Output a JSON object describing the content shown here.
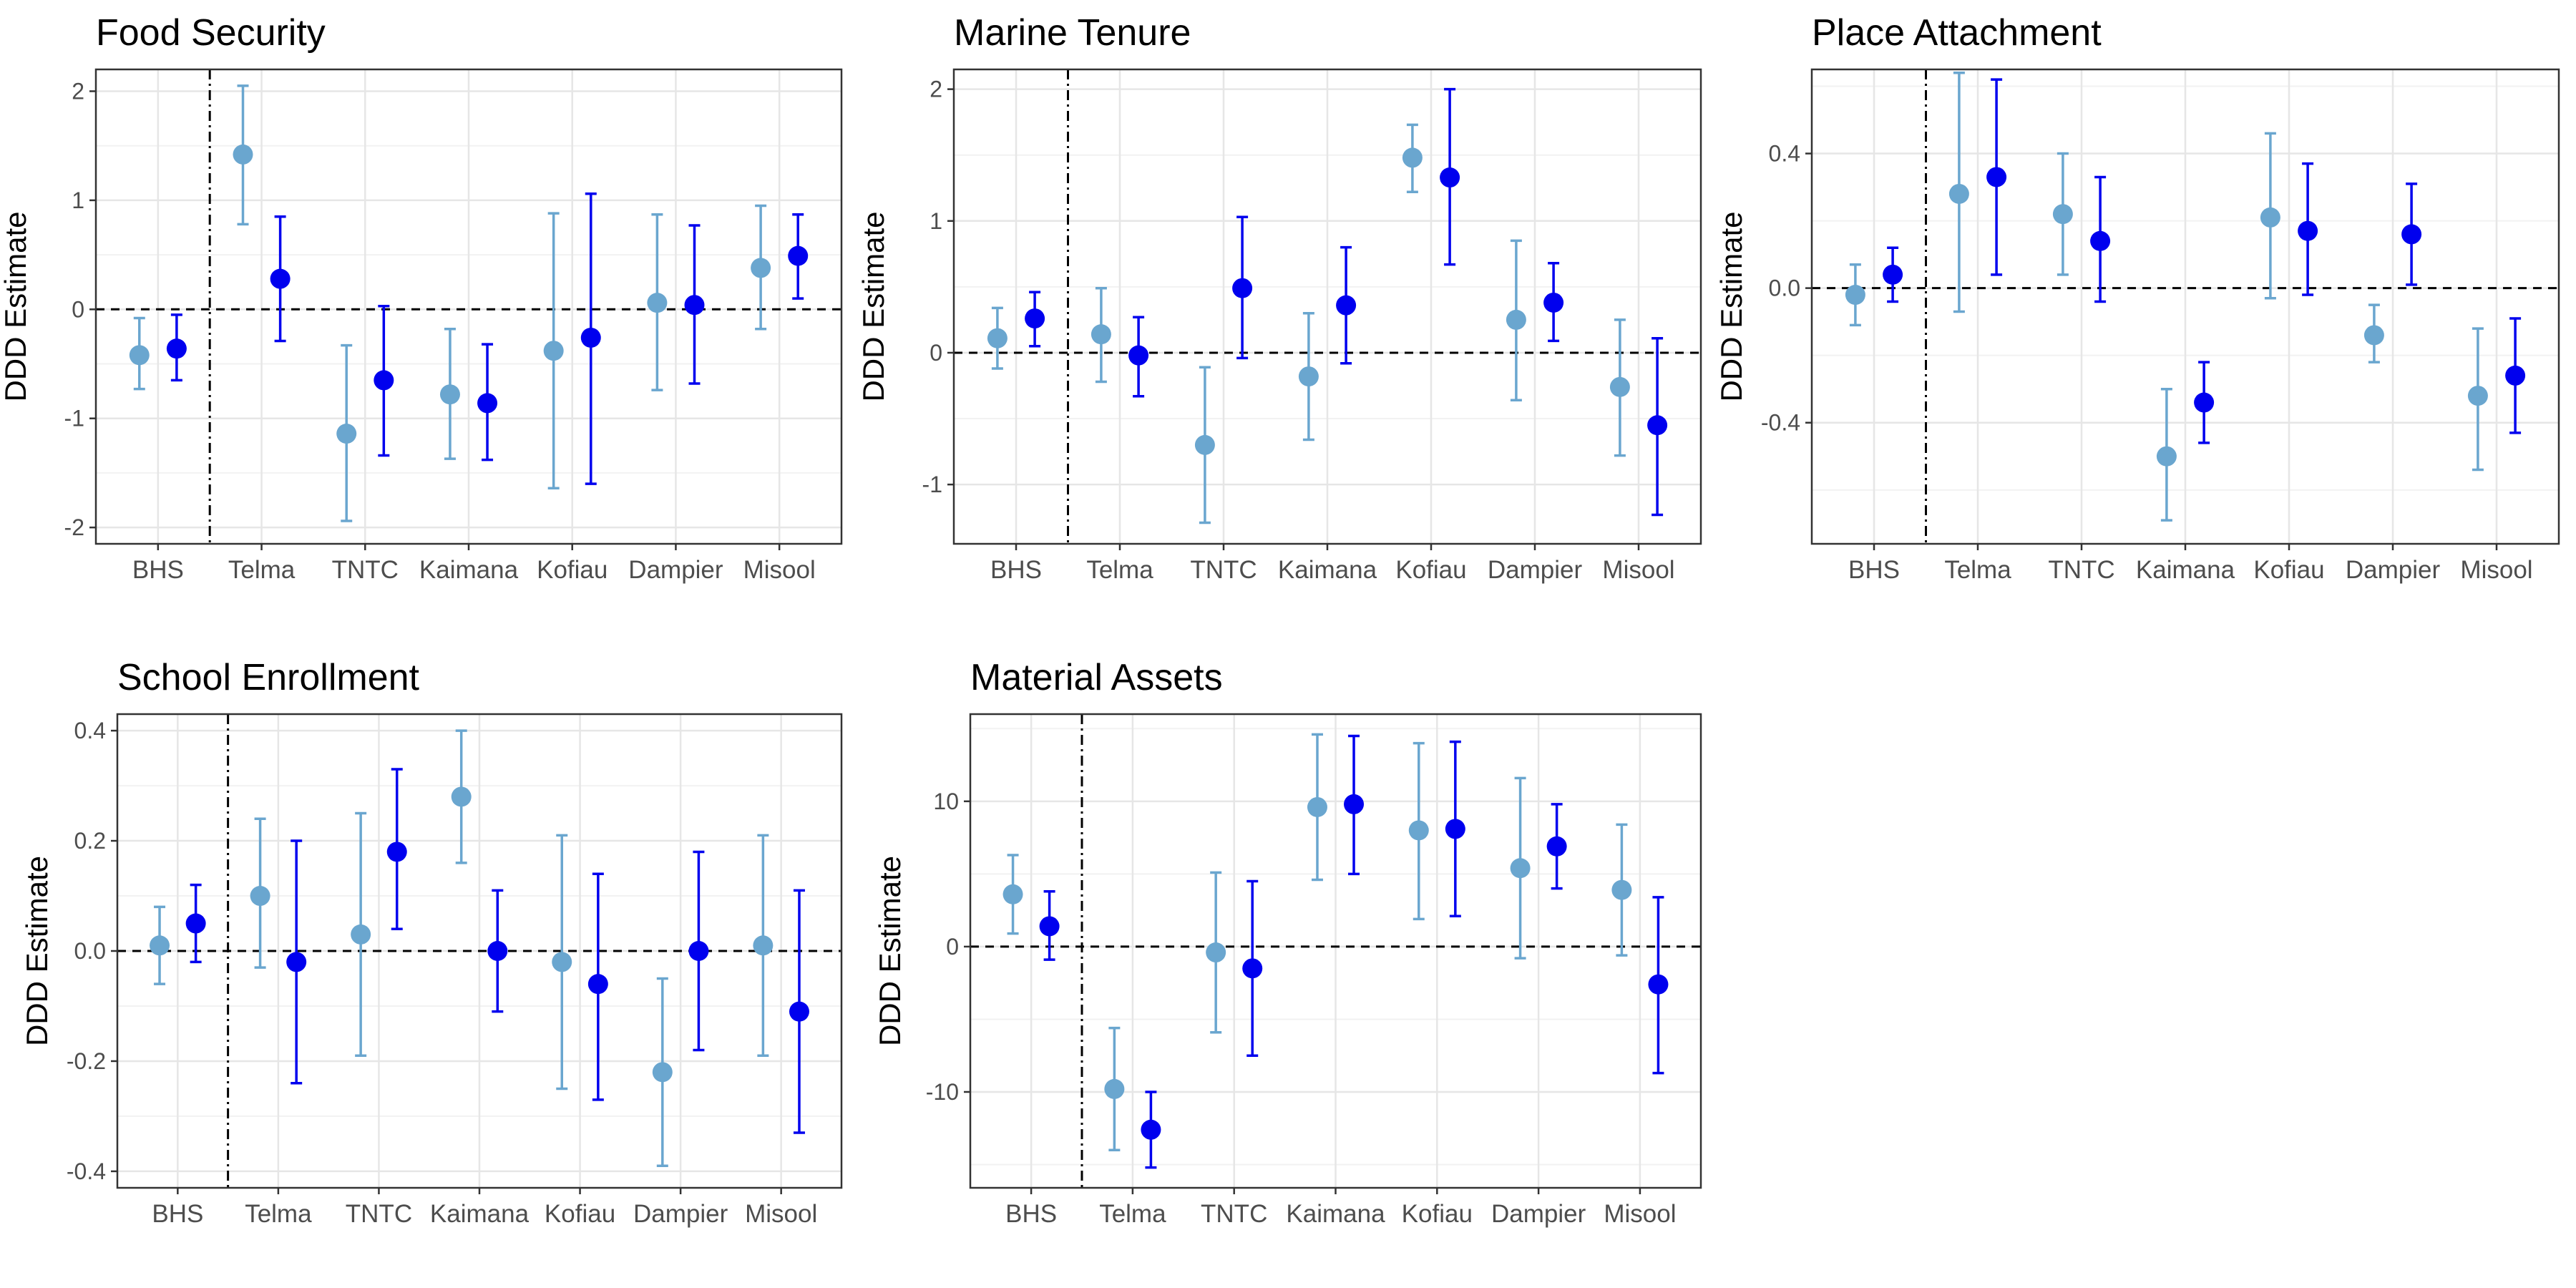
{
  "colors": {
    "series_light": "#6aa6cf",
    "series_dark": "#0000ee",
    "grid_major": "#e6e6e6",
    "grid_minor": "#f2f2f2",
    "panel_border": "#333333",
    "tick_text": "#4d4d4d",
    "zero_line": "#000000",
    "divider_line": "#000000"
  },
  "chart_data": [
    {
      "type": "scatter",
      "title": "Food Security",
      "ylabel": "DDD Estimate",
      "categories": [
        "BHS",
        "Telma",
        "TNTC",
        "Kaimana",
        "Kofiau",
        "Dampier",
        "Misool"
      ],
      "ylim": [
        -2.15,
        2.2
      ],
      "yticks": [
        -2,
        -1,
        0,
        1,
        2
      ],
      "ytick_labels": [
        "-2",
        "-1",
        "0",
        "1",
        "2"
      ],
      "zero_line": "dashed",
      "divider_after_category": "BHS",
      "grid": true,
      "series": [
        {
          "estimate": [
            -0.42,
            1.42,
            -1.14,
            -0.78,
            -0.38,
            0.06,
            0.38
          ],
          "lower": [
            -0.73,
            0.78,
            -1.94,
            -1.37,
            -1.64,
            -0.74,
            -0.18
          ],
          "upper": [
            -0.08,
            2.05,
            -0.33,
            -0.18,
            0.88,
            0.87,
            0.95
          ]
        },
        {
          "estimate": [
            -0.36,
            0.28,
            -0.65,
            -0.86,
            -0.26,
            0.04,
            0.49
          ],
          "lower": [
            -0.65,
            -0.29,
            -1.34,
            -1.38,
            -1.6,
            -0.68,
            0.1
          ],
          "upper": [
            -0.05,
            0.85,
            0.03,
            -0.32,
            1.06,
            0.77,
            0.87
          ]
        }
      ]
    },
    {
      "type": "scatter",
      "title": "Marine Tenure",
      "ylabel": "DDD Estimate",
      "categories": [
        "BHS",
        "Telma",
        "TNTC",
        "Kaimana",
        "Kofiau",
        "Dampier",
        "Misool"
      ],
      "ylim": [
        -1.45,
        2.15
      ],
      "yticks": [
        -1,
        0,
        1,
        2
      ],
      "ytick_labels": [
        "-1",
        "0",
        "1",
        "2"
      ],
      "zero_line": "dashed",
      "divider_after_category": "BHS",
      "grid": true,
      "series": [
        {
          "estimate": [
            0.11,
            0.14,
            -0.7,
            -0.18,
            1.48,
            0.25,
            -0.26
          ],
          "lower": [
            -0.12,
            -0.22,
            -1.29,
            -0.66,
            1.22,
            -0.36,
            -0.78
          ],
          "upper": [
            0.34,
            0.49,
            -0.11,
            0.3,
            1.73,
            0.85,
            0.25
          ]
        },
        {
          "estimate": [
            0.26,
            -0.02,
            0.49,
            0.36,
            1.33,
            0.38,
            -0.55
          ],
          "lower": [
            0.05,
            -0.33,
            -0.04,
            -0.08,
            0.67,
            0.09,
            -1.23
          ],
          "upper": [
            0.46,
            0.27,
            1.03,
            0.8,
            2.0,
            0.68,
            0.11
          ]
        }
      ]
    },
    {
      "type": "scatter",
      "title": "Place Attachment",
      "ylabel": "DDD Estimate",
      "categories": [
        "BHS",
        "Telma",
        "TNTC",
        "Kaimana",
        "Kofiau",
        "Dampier",
        "Misool"
      ],
      "ylim": [
        -0.76,
        0.65
      ],
      "yticks": [
        -0.4,
        0.0,
        0.4
      ],
      "ytick_labels": [
        "-0.4",
        "0.0",
        "0.4"
      ],
      "zero_line": "dashed",
      "divider_after_category": "BHS",
      "grid": true,
      "series": [
        {
          "estimate": [
            -0.02,
            0.28,
            0.22,
            -0.5,
            0.21,
            -0.14,
            -0.32
          ],
          "lower": [
            -0.11,
            -0.07,
            0.04,
            -0.69,
            -0.03,
            -0.22,
            -0.54
          ],
          "upper": [
            0.07,
            0.64,
            0.4,
            -0.3,
            0.46,
            -0.05,
            -0.12
          ]
        },
        {
          "estimate": [
            0.04,
            0.33,
            0.14,
            -0.34,
            0.17,
            0.16,
            -0.26
          ],
          "lower": [
            -0.04,
            0.04,
            -0.04,
            -0.46,
            -0.02,
            0.01,
            -0.43
          ],
          "upper": [
            0.12,
            0.62,
            0.33,
            -0.22,
            0.37,
            0.31,
            -0.09
          ]
        }
      ]
    },
    {
      "type": "scatter",
      "title": "School Enrollment",
      "ylabel": "DDD Estimate",
      "categories": [
        "BHS",
        "Telma",
        "TNTC",
        "Kaimana",
        "Kofiau",
        "Dampier",
        "Misool"
      ],
      "ylim": [
        -0.43,
        0.43
      ],
      "yticks": [
        -0.4,
        -0.2,
        0.0,
        0.2,
        0.4
      ],
      "ytick_labels": [
        "-0.4",
        "-0.2",
        "0.0",
        "0.2",
        "0.4"
      ],
      "zero_line": "dashed",
      "divider_after_category": "BHS",
      "grid": true,
      "series": [
        {
          "estimate": [
            0.01,
            0.1,
            0.03,
            0.28,
            -0.02,
            -0.22,
            0.01
          ],
          "lower": [
            -0.06,
            -0.03,
            -0.19,
            0.16,
            -0.25,
            -0.39,
            -0.19
          ],
          "upper": [
            0.08,
            0.24,
            0.25,
            0.4,
            0.21,
            -0.05,
            0.21
          ]
        },
        {
          "estimate": [
            0.05,
            -0.02,
            0.18,
            0.0,
            -0.06,
            0.0,
            -0.11
          ],
          "lower": [
            -0.02,
            -0.24,
            0.04,
            -0.11,
            -0.27,
            -0.18,
            -0.33
          ],
          "upper": [
            0.12,
            0.2,
            0.33,
            0.11,
            0.14,
            0.18,
            0.11
          ]
        }
      ]
    },
    {
      "type": "scatter",
      "title": "Material Assets",
      "ylabel": "DDD Estimate",
      "categories": [
        "BHS",
        "Telma",
        "TNTC",
        "Kaimana",
        "Kofiau",
        "Dampier",
        "Misool"
      ],
      "ylim": [
        -16.6,
        16.0
      ],
      "yticks": [
        -10,
        0,
        10
      ],
      "ytick_labels": [
        "-10",
        "0",
        "10"
      ],
      "zero_line": "dashed",
      "divider_after_category": "BHS",
      "grid": true,
      "series": [
        {
          "estimate": [
            3.6,
            -9.8,
            -0.4,
            9.6,
            8.0,
            5.4,
            3.9
          ],
          "lower": [
            0.9,
            -14.0,
            -5.9,
            4.6,
            1.9,
            -0.8,
            -0.6
          ],
          "upper": [
            6.3,
            -5.6,
            5.1,
            14.6,
            14.0,
            11.6,
            8.4
          ]
        },
        {
          "estimate": [
            1.4,
            -12.6,
            -1.5,
            9.8,
            8.1,
            6.9,
            -2.6
          ],
          "lower": [
            -0.9,
            -15.2,
            -7.5,
            5.0,
            2.1,
            4.0,
            -8.7
          ],
          "upper": [
            3.8,
            -10.0,
            4.5,
            14.5,
            14.1,
            9.8,
            3.4
          ]
        }
      ]
    }
  ]
}
